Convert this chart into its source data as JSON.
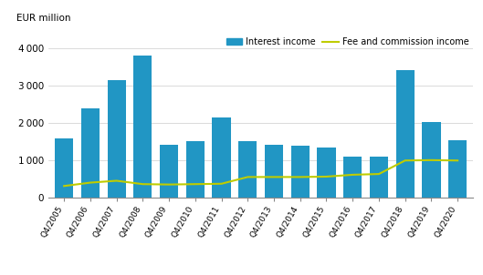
{
  "categories": [
    "Q4/2005",
    "Q4/2006",
    "Q4/2007",
    "Q4/2008",
    "Q4/2009",
    "Q4/2010",
    "Q4/2011",
    "Q4/2012",
    "Q4/2013",
    "Q4/2014",
    "Q4/2015",
    "Q4/2016",
    "Q4/2017",
    "Q4/2018",
    "Q4/2019",
    "Q4/2020"
  ],
  "interest_income": [
    1600,
    2400,
    3150,
    3800,
    1430,
    1510,
    2150,
    1510,
    1420,
    1390,
    1350,
    1110,
    1100,
    3400,
    2020,
    1530
  ],
  "fee_commission_income": [
    320,
    410,
    460,
    370,
    360,
    370,
    380,
    560,
    560,
    560,
    570,
    620,
    640,
    1000,
    1010,
    1000
  ],
  "bar_color": "#2196C4",
  "line_color": "#BFCC00",
  "ylabel": "EUR million",
  "ylim": [
    0,
    4400
  ],
  "yticks": [
    0,
    1000,
    2000,
    3000,
    4000
  ],
  "legend_interest": "Interest income",
  "legend_fee": "Fee and commission income",
  "background_color": "#ffffff",
  "grid_color": "#cccccc"
}
